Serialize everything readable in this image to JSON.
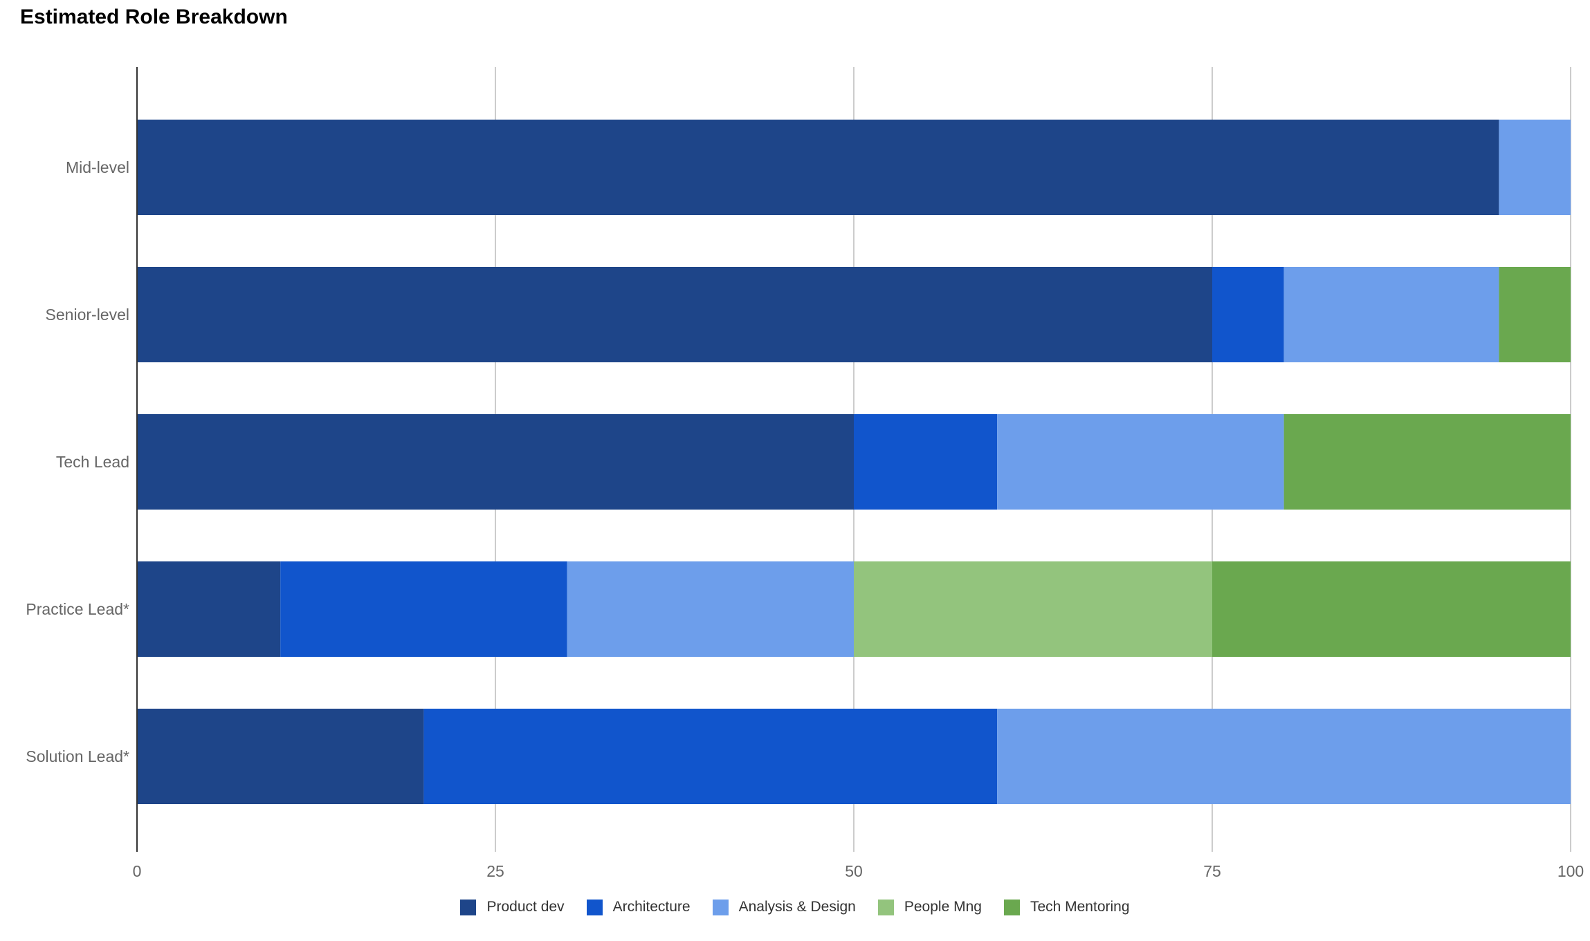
{
  "chart_data": {
    "type": "bar",
    "orientation": "horizontal",
    "stacked": true,
    "title": "Estimated Role Breakdown",
    "xlabel": "",
    "ylabel": "",
    "xlim": [
      0,
      100
    ],
    "x_ticks": [
      0,
      25,
      50,
      75,
      100
    ],
    "grid": "vertical",
    "legend_position": "bottom",
    "categories": [
      "Mid-level",
      "Senior-level",
      "Tech Lead",
      "Practice Lead*",
      "Solution Lead*"
    ],
    "series": [
      {
        "name": "Product dev",
        "color": "#1e4589",
        "values": [
          95,
          75,
          50,
          10,
          20
        ]
      },
      {
        "name": "Architecture",
        "color": "#1155cc",
        "values": [
          0,
          5,
          10,
          20,
          40
        ]
      },
      {
        "name": "Analysis & Design",
        "color": "#6d9eeb",
        "values": [
          5,
          15,
          20,
          20,
          40
        ]
      },
      {
        "name": "People Mng",
        "color": "#93c47d",
        "values": [
          0,
          0,
          0,
          25,
          0
        ]
      },
      {
        "name": "Tech Mentoring",
        "color": "#6aa84f",
        "values": [
          0,
          5,
          20,
          25,
          0
        ]
      }
    ]
  }
}
